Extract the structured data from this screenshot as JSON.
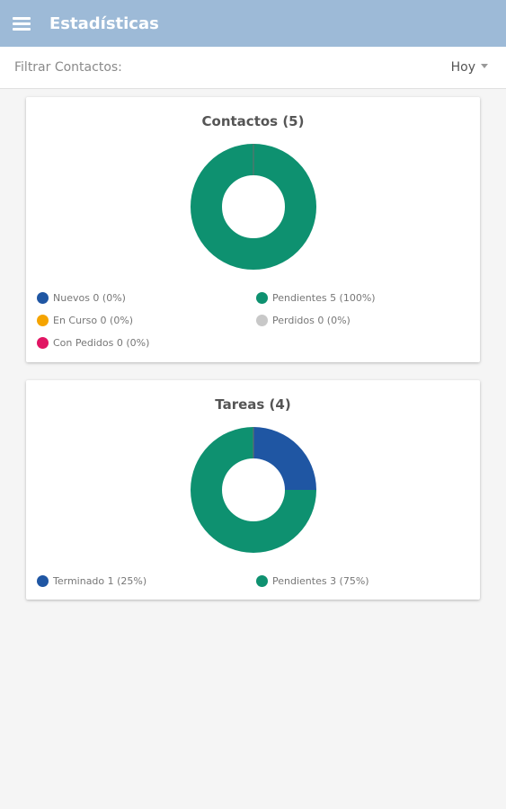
{
  "header": {
    "title": "Estadísticas"
  },
  "filter": {
    "label": "Filtrar Contactos:",
    "selected": "Hoy"
  },
  "colors": {
    "blue": "#1f56a3",
    "green": "#0e9170",
    "orange": "#f5a400",
    "gray": "#c8c8c8",
    "pink": "#e11563"
  },
  "contactos": {
    "title": "Contactos (5)",
    "legend": [
      {
        "label": "Nuevos 0 (0%)",
        "color": "#1f56a3",
        "value": 0
      },
      {
        "label": "Pendientes 5 (100%)",
        "color": "#0e9170",
        "value": 5
      },
      {
        "label": "En Curso 0 (0%)",
        "color": "#f5a400",
        "value": 0
      },
      {
        "label": "Perdidos 0 (0%)",
        "color": "#c8c8c8",
        "value": 0
      },
      {
        "label": "Con Pedidos 0 (0%)",
        "color": "#e11563",
        "value": 0
      }
    ]
  },
  "tareas": {
    "title": "Tareas (4)",
    "legend": [
      {
        "label": "Terminado 1 (25%)",
        "color": "#1f56a3",
        "value": 1
      },
      {
        "label": "Pendientes 3 (75%)",
        "color": "#0e9170",
        "value": 3
      }
    ]
  },
  "chart_data": [
    {
      "type": "pie",
      "title": "Contactos (5)",
      "categories": [
        "Nuevos",
        "Pendientes",
        "En Curso",
        "Perdidos",
        "Con Pedidos"
      ],
      "values": [
        0,
        5,
        0,
        0,
        0
      ]
    },
    {
      "type": "pie",
      "title": "Tareas (4)",
      "categories": [
        "Terminado",
        "Pendientes"
      ],
      "values": [
        1,
        3
      ]
    }
  ]
}
